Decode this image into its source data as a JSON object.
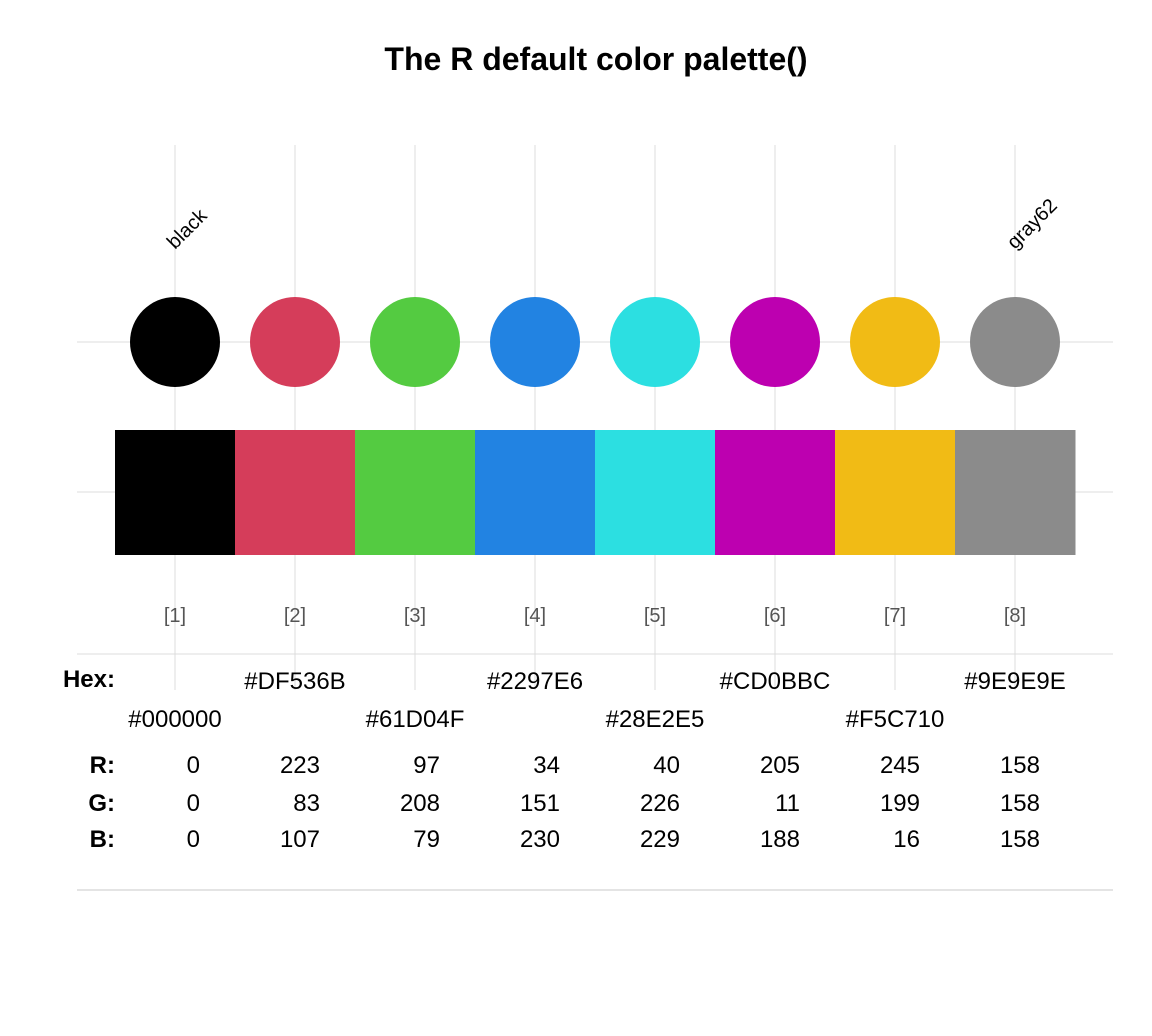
{
  "title": "The R default color palette()",
  "row_labels": {
    "hex": "Hex:",
    "r": "R:",
    "g": "G:",
    "b": "B:"
  },
  "colors": [
    {
      "index": "[1]",
      "name": "black",
      "hex": "#000000",
      "r": "0",
      "g": "0",
      "b": "0",
      "display": "#000000"
    },
    {
      "index": "[2]",
      "name": "",
      "hex": "#DF536B",
      "r": "223",
      "g": "83",
      "b": "107",
      "display": "#D53D5A"
    },
    {
      "index": "[3]",
      "name": "",
      "hex": "#61D04F",
      "r": "97",
      "g": "208",
      "b": "79",
      "display": "#54CB41"
    },
    {
      "index": "[4]",
      "name": "",
      "hex": "#2297E6",
      "r": "34",
      "g": "151",
      "b": "230",
      "display": "#2283E2"
    },
    {
      "index": "[5]",
      "name": "",
      "hex": "#28E2E5",
      "r": "40",
      "g": "226",
      "b": "229",
      "display": "#2CDFE1"
    },
    {
      "index": "[6]",
      "name": "",
      "hex": "#CD0BBC",
      "r": "205",
      "g": "11",
      "b": "188",
      "display": "#BD00B0"
    },
    {
      "index": "[7]",
      "name": "",
      "hex": "#F5C710",
      "r": "245",
      "g": "199",
      "b": "16",
      "display": "#F1BB15"
    },
    {
      "index": "[8]",
      "name": "gray62",
      "hex": "#9E9E9E",
      "r": "158",
      "g": "158",
      "b": "158",
      "display": "#8B8B8B"
    }
  ]
}
